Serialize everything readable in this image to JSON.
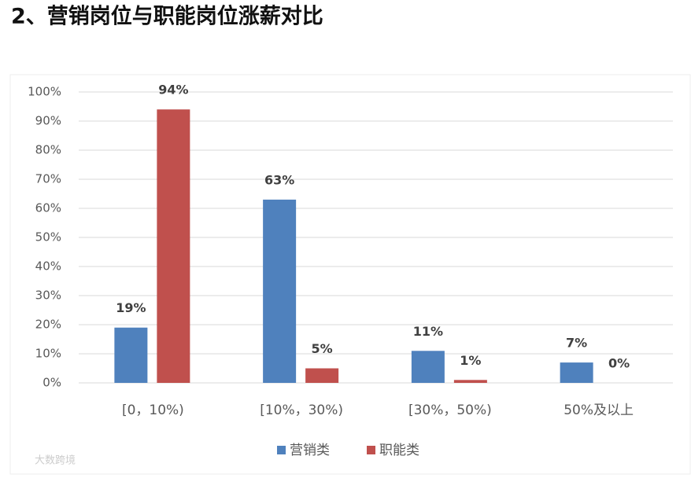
{
  "chart_data": {
    "type": "bar",
    "title": "2、营销岗位与职能岗位涨薪对比",
    "categories": [
      "[0，10%)",
      "[10%，30%)",
      "[30%，50%)",
      "50%及以上"
    ],
    "series": [
      {
        "name": "营销类",
        "color": "#4f81bd",
        "values": [
          19,
          63,
          11,
          7
        ],
        "value_labels": [
          "19%",
          "63%",
          "11%",
          "7%"
        ]
      },
      {
        "name": "职能类",
        "color": "#c0504d",
        "values": [
          94,
          5,
          1,
          0
        ],
        "value_labels": [
          "94%",
          "5%",
          "1%",
          "0%"
        ]
      }
    ],
    "ylim": [
      0,
      100
    ],
    "yticks": [
      {
        "value": 0,
        "label": "0%"
      },
      {
        "value": 10,
        "label": "10%"
      },
      {
        "value": 20,
        "label": "20%"
      },
      {
        "value": 30,
        "label": "30%"
      },
      {
        "value": 40,
        "label": "40%"
      },
      {
        "value": 50,
        "label": "50%"
      },
      {
        "value": 60,
        "label": "60%"
      },
      {
        "value": 70,
        "label": "70%"
      },
      {
        "value": 80,
        "label": "80%"
      },
      {
        "value": 90,
        "label": "90%"
      },
      {
        "value": 100,
        "label": "100%"
      }
    ],
    "grid": true,
    "legend": "bottom",
    "watermark": "大数跨境"
  }
}
